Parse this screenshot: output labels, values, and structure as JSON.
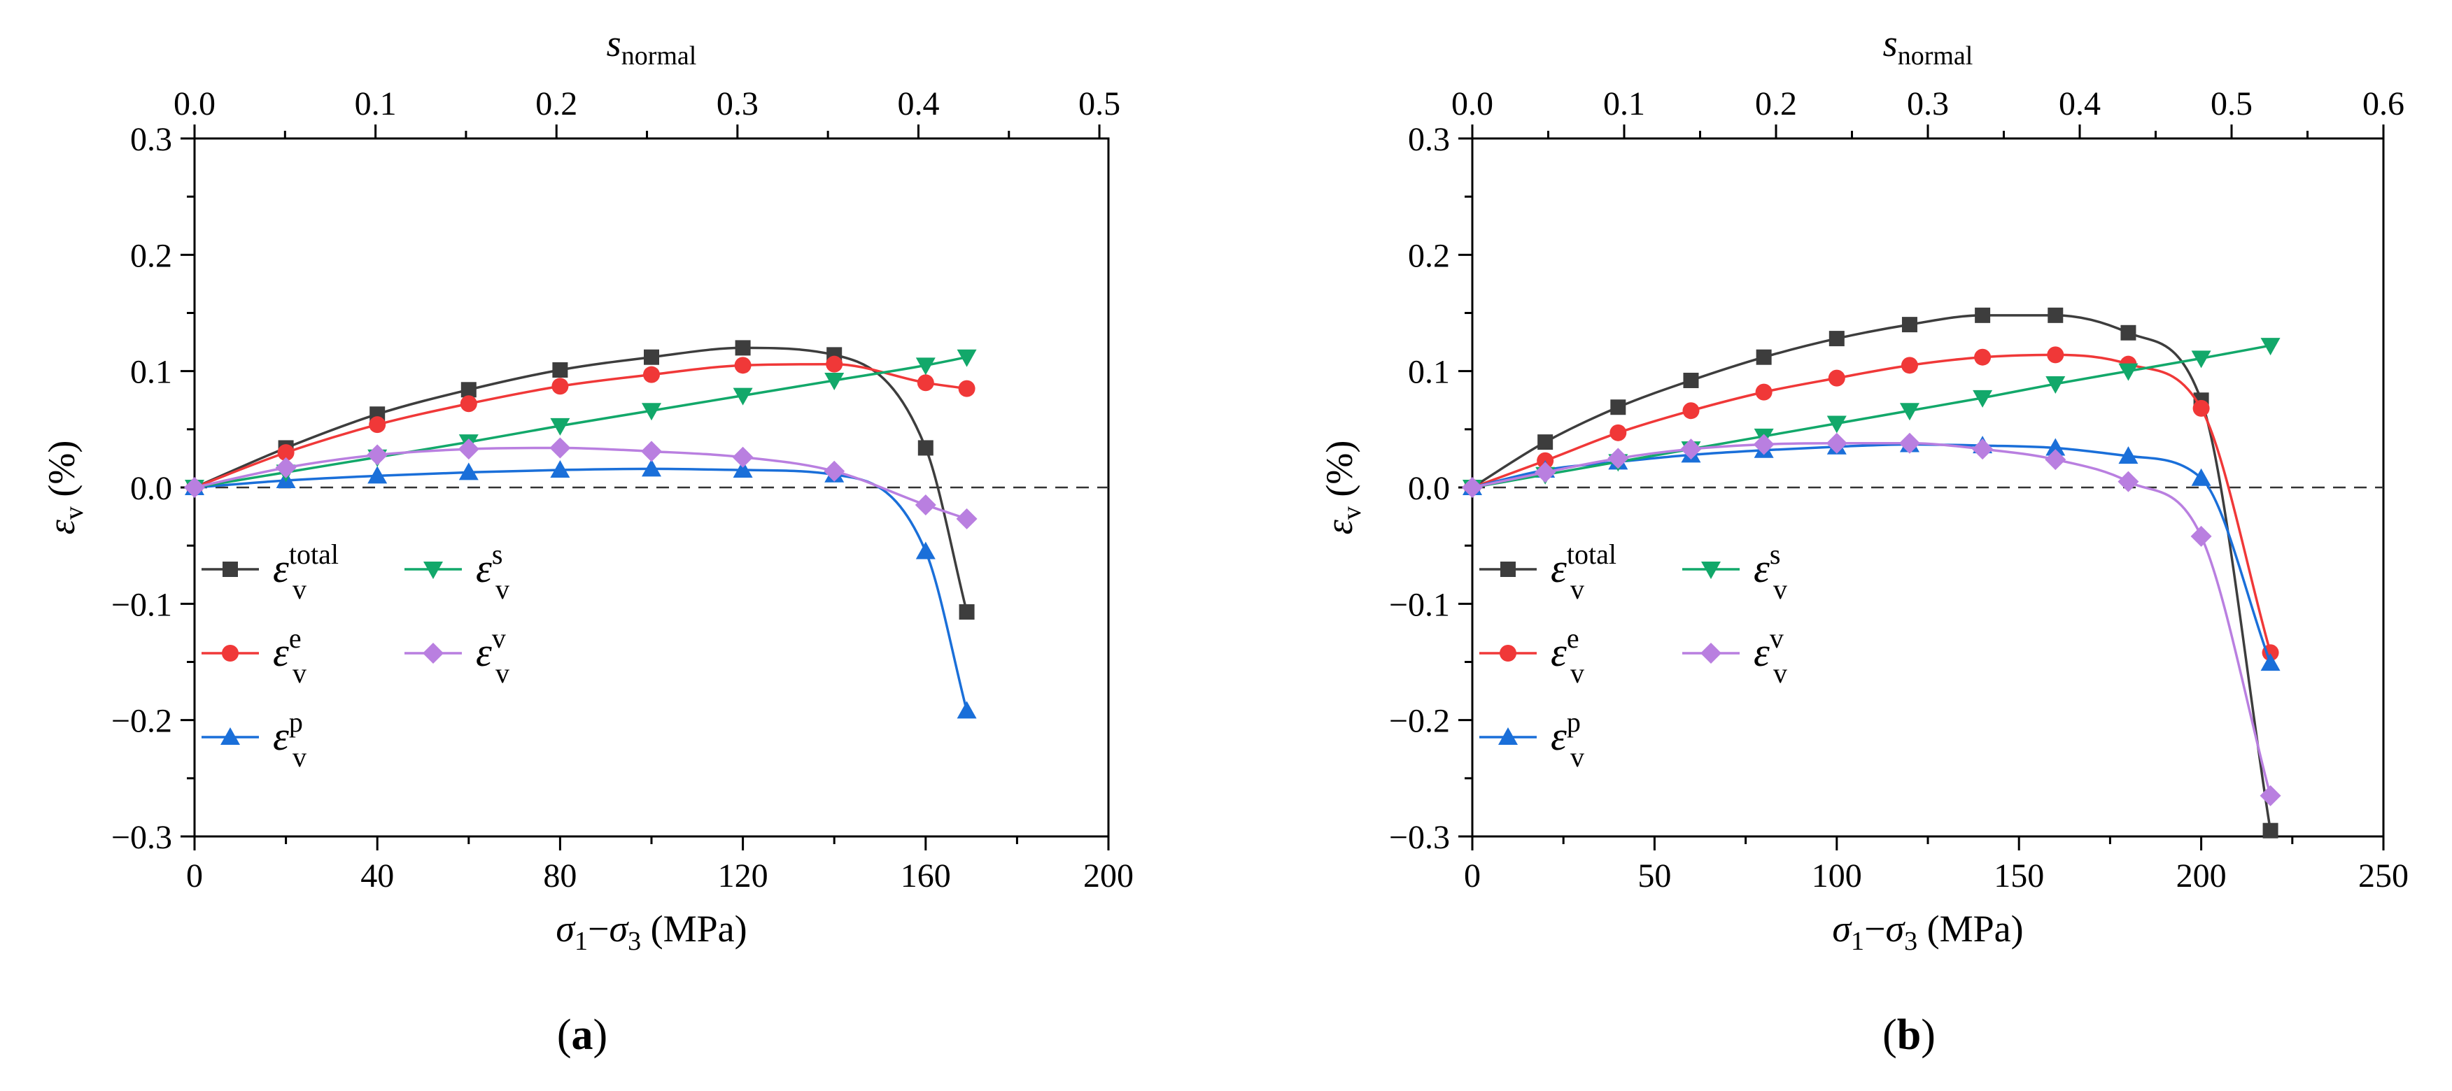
{
  "figure_labels": [
    {
      "open": "(",
      "letter": "a",
      "close": ")"
    },
    {
      "open": "(",
      "letter": "b",
      "close": ")"
    }
  ],
  "series_styles": [
    {
      "key": "total",
      "sup": "total",
      "color": "#3d3d3d",
      "marker": "square"
    },
    {
      "key": "e",
      "sup": "e",
      "color": "#f03838",
      "marker": "circle"
    },
    {
      "key": "p",
      "sup": "p",
      "color": "#1a6fd9",
      "marker": "triangle-up"
    },
    {
      "key": "s",
      "sup": "s",
      "color": "#12a86a",
      "marker": "triangle-down"
    },
    {
      "key": "v",
      "sup": "v",
      "color": "#b97fe0",
      "marker": "diamond"
    }
  ],
  "chart_data": [
    {
      "type": "line",
      "panel": "a",
      "xlabel": {
        "s1": "σ",
        "sub1": "1",
        "dash": "−",
        "s3": "σ",
        "sub3": "3",
        "unit": " (MPa)"
      },
      "ylabel": {
        "sym": "ε",
        "sub": "v",
        "unit": " (%)"
      },
      "top_xlabel": {
        "sym": "s",
        "sub": "normal"
      },
      "xlim": [
        0,
        200
      ],
      "ylim": [
        -0.3,
        0.3
      ],
      "xticks": [
        0,
        40,
        80,
        120,
        160,
        200
      ],
      "yticks": [
        -0.3,
        -0.2,
        -0.1,
        0.0,
        0.1,
        0.2,
        0.3
      ],
      "ytick_labels": [
        "−0.3",
        "−0.2",
        "−0.1",
        "0.0",
        "0.1",
        "0.2",
        "0.3"
      ],
      "top_xlim": [
        0,
        0.505
      ],
      "top_xticks": [
        0.0,
        0.1,
        0.2,
        0.3,
        0.4,
        0.5
      ],
      "top_xtick_labels": [
        "0.0",
        "0.1",
        "0.2",
        "0.3",
        "0.4",
        "0.5"
      ],
      "reference_line_y": 0,
      "legend_sym": "ε",
      "legend_sub": "v",
      "series": [
        {
          "key": "total",
          "x": [
            0,
            20,
            40,
            60,
            80,
            100,
            120,
            140,
            160,
            169
          ],
          "y": [
            0.0,
            0.034,
            0.063,
            0.084,
            0.101,
            0.112,
            0.12,
            0.114,
            0.034,
            -0.107
          ]
        },
        {
          "key": "e",
          "x": [
            0,
            20,
            40,
            60,
            80,
            100,
            120,
            140,
            160,
            169
          ],
          "y": [
            0.0,
            0.03,
            0.054,
            0.072,
            0.087,
            0.097,
            0.105,
            0.106,
            0.09,
            0.085
          ]
        },
        {
          "key": "p",
          "x": [
            0,
            20,
            40,
            60,
            80,
            100,
            120,
            140,
            160,
            169
          ],
          "y": [
            0.0,
            0.006,
            0.01,
            0.013,
            0.015,
            0.016,
            0.015,
            0.011,
            -0.055,
            -0.192
          ]
        },
        {
          "key": "s",
          "x": [
            0,
            20,
            40,
            60,
            80,
            100,
            120,
            140,
            160,
            169
          ],
          "y": [
            0.0,
            0.013,
            0.026,
            0.039,
            0.053,
            0.066,
            0.079,
            0.092,
            0.105,
            0.112
          ]
        },
        {
          "key": "v",
          "x": [
            0,
            20,
            40,
            60,
            80,
            100,
            120,
            140,
            160,
            169
          ],
          "y": [
            0.0,
            0.017,
            0.028,
            0.033,
            0.034,
            0.031,
            0.026,
            0.014,
            -0.015,
            -0.027
          ]
        }
      ]
    },
    {
      "type": "line",
      "panel": "b",
      "xlabel": {
        "s1": "σ",
        "sub1": "1",
        "dash": "−",
        "s3": "σ",
        "sub3": "3",
        "unit": " (MPa)"
      },
      "ylabel": {
        "sym": "ε",
        "sub": "v",
        "unit": " (%)"
      },
      "top_xlabel": {
        "sym": "s",
        "sub": "normal"
      },
      "xlim": [
        0,
        250
      ],
      "ylim": [
        -0.3,
        0.3
      ],
      "xticks": [
        0,
        50,
        100,
        150,
        200,
        250
      ],
      "yticks": [
        -0.3,
        -0.2,
        -0.1,
        0.0,
        0.1,
        0.2,
        0.3
      ],
      "ytick_labels": [
        "−0.3",
        "−0.2",
        "−0.1",
        "0.0",
        "0.1",
        "0.2",
        "0.3"
      ],
      "top_xlim": [
        0,
        0.6
      ],
      "top_xticks": [
        0.0,
        0.1,
        0.2,
        0.3,
        0.4,
        0.5,
        0.6
      ],
      "top_xtick_labels": [
        "0.0",
        "0.1",
        "0.2",
        "0.3",
        "0.4",
        "0.5",
        "0.6"
      ],
      "reference_line_y": 0,
      "legend_sym": "ε",
      "legend_sub": "v",
      "series": [
        {
          "key": "total",
          "x": [
            0,
            20,
            40,
            60,
            80,
            100,
            120,
            140,
            160,
            180,
            200,
            219
          ],
          "y": [
            0.0,
            0.039,
            0.069,
            0.092,
            0.112,
            0.128,
            0.14,
            0.148,
            0.148,
            0.133,
            0.075,
            -0.295
          ]
        },
        {
          "key": "e",
          "x": [
            0,
            20,
            40,
            60,
            80,
            100,
            120,
            140,
            160,
            180,
            200,
            219
          ],
          "y": [
            0.0,
            0.023,
            0.047,
            0.066,
            0.082,
            0.094,
            0.105,
            0.112,
            0.114,
            0.106,
            0.068,
            -0.142
          ]
        },
        {
          "key": "p",
          "x": [
            0,
            20,
            40,
            60,
            80,
            100,
            120,
            140,
            160,
            180,
            200,
            219
          ],
          "y": [
            0.0,
            0.015,
            0.022,
            0.028,
            0.032,
            0.035,
            0.037,
            0.036,
            0.034,
            0.027,
            0.008,
            -0.151
          ]
        },
        {
          "key": "s",
          "x": [
            0,
            20,
            40,
            60,
            80,
            100,
            120,
            140,
            160,
            180,
            200,
            219
          ],
          "y": [
            0.0,
            0.011,
            0.022,
            0.033,
            0.044,
            0.055,
            0.066,
            0.077,
            0.089,
            0.1,
            0.111,
            0.122
          ]
        },
        {
          "key": "v",
          "x": [
            0,
            20,
            40,
            60,
            80,
            100,
            120,
            140,
            160,
            180,
            200,
            219
          ],
          "y": [
            0.0,
            0.013,
            0.025,
            0.033,
            0.037,
            0.038,
            0.038,
            0.033,
            0.024,
            0.005,
            -0.042,
            -0.265
          ]
        }
      ]
    }
  ]
}
